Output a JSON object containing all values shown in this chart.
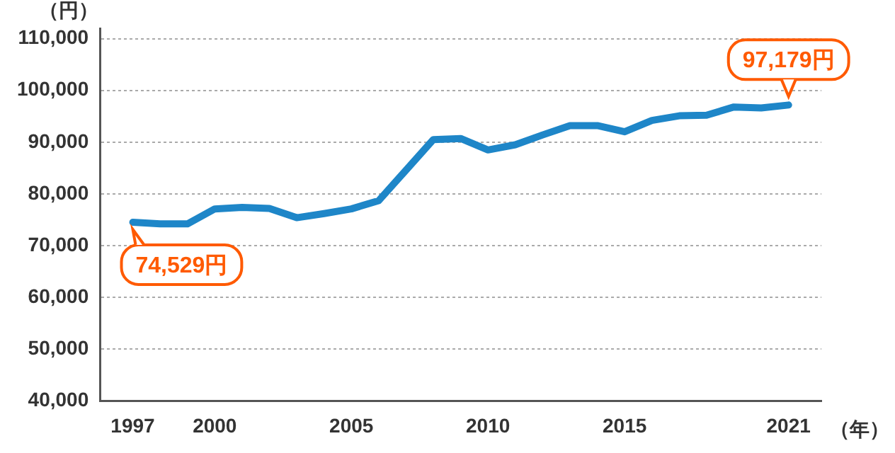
{
  "chart_data": {
    "type": "line",
    "xlabel": "（年）",
    "ylabel": "（円）",
    "x": [
      1997,
      1998,
      1999,
      2000,
      2001,
      2002,
      2003,
      2004,
      2005,
      2006,
      2007,
      2008,
      2009,
      2010,
      2011,
      2012,
      2013,
      2014,
      2015,
      2016,
      2017,
      2018,
      2019,
      2020,
      2021
    ],
    "series": [
      {
        "color": "#1e86c8",
        "values": [
          74529,
          74200,
          74200,
          77100,
          77400,
          77200,
          75400,
          76200,
          77100,
          78700,
          84600,
          90500,
          90700,
          88500,
          89500,
          91400,
          93200,
          93200,
          92000,
          94200,
          95100,
          95200,
          96800,
          96600,
          97179
        ]
      }
    ],
    "xlim": [
      1995.8,
      2022.2
    ],
    "xticks": [
      1997,
      2000,
      2005,
      2010,
      2015,
      2021
    ],
    "ylim": [
      40000,
      112000
    ],
    "yticks": [
      {
        "value": 40000,
        "label": "40,000"
      },
      {
        "value": 50000,
        "label": "50,000"
      },
      {
        "value": 60000,
        "label": "60,000"
      },
      {
        "value": 70000,
        "label": "70,000"
      },
      {
        "value": 80000,
        "label": "80,000"
      },
      {
        "value": 90000,
        "label": "90,000"
      },
      {
        "value": 100000,
        "label": "100,000"
      },
      {
        "value": 110000,
        "label": "110,000"
      }
    ],
    "grid": "y",
    "legend": false,
    "marker": "none",
    "line_style": "solid",
    "annotations": [
      {
        "text": "74,529円",
        "x": 1997,
        "y": 74529
      },
      {
        "text": "97,179円",
        "x": 2021,
        "y": 97179
      }
    ]
  }
}
